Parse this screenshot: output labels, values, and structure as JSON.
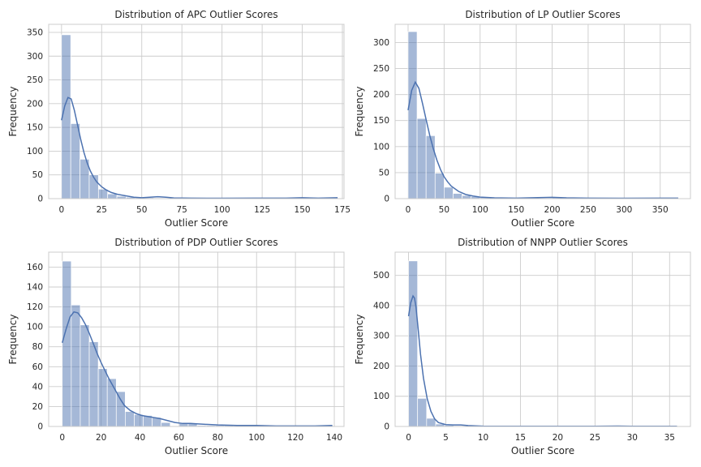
{
  "chart_data": [
    {
      "type": "histogram",
      "title": "Distribution of APC Outlier Scores",
      "xlabel": "Outlier Score",
      "ylabel": "Frequency",
      "xlim": [
        -8,
        176
      ],
      "ylim": [
        0,
        367
      ],
      "xticks": [
        0,
        25,
        50,
        75,
        100,
        125,
        150,
        175
      ],
      "yticks": [
        0,
        50,
        100,
        150,
        200,
        250,
        300,
        350
      ],
      "grid": true,
      "bin_start": 0,
      "bin_width": 5.75,
      "values": [
        345,
        158,
        83,
        50,
        20,
        10,
        5,
        3,
        2,
        2,
        1,
        1,
        1,
        0,
        0,
        0,
        0,
        0,
        0,
        0,
        0,
        0,
        0,
        0,
        0,
        1,
        0,
        0,
        0,
        1
      ],
      "kde": [
        [
          0,
          165
        ],
        [
          2,
          195
        ],
        [
          4,
          213
        ],
        [
          6,
          210
        ],
        [
          8,
          186
        ],
        [
          10,
          155
        ],
        [
          12,
          124
        ],
        [
          14,
          97
        ],
        [
          16,
          75
        ],
        [
          18,
          58
        ],
        [
          20,
          45
        ],
        [
          22,
          35
        ],
        [
          25,
          25
        ],
        [
          28,
          18
        ],
        [
          31,
          13
        ],
        [
          35,
          9
        ],
        [
          40,
          6
        ],
        [
          45,
          3
        ],
        [
          50,
          2
        ],
        [
          55,
          3
        ],
        [
          60,
          4
        ],
        [
          65,
          3
        ],
        [
          70,
          1.5
        ],
        [
          80,
          1
        ],
        [
          100,
          0.8
        ],
        [
          120,
          1
        ],
        [
          140,
          1
        ],
        [
          150,
          2
        ],
        [
          160,
          1
        ],
        [
          172,
          2
        ]
      ]
    },
    {
      "type": "histogram",
      "title": "Distribution of LP Outlier Scores",
      "xlabel": "Outlier Score",
      "ylabel": "Frequency",
      "xlim": [
        -18,
        392
      ],
      "ylim": [
        0,
        335
      ],
      "xticks": [
        0,
        50,
        100,
        150,
        200,
        250,
        300,
        350
      ],
      "yticks": [
        0,
        50,
        100,
        150,
        200,
        250,
        300
      ],
      "grid": true,
      "bin_start": 0,
      "bin_width": 12.5,
      "values": [
        321,
        154,
        121,
        49,
        22,
        10,
        6,
        4,
        2,
        2,
        1,
        1,
        0,
        0,
        1,
        1,
        2,
        1,
        1,
        0,
        1,
        0,
        0,
        0,
        1,
        0,
        0,
        0,
        0,
        1
      ],
      "kde": [
        [
          0,
          170
        ],
        [
          5,
          208
        ],
        [
          10,
          224
        ],
        [
          15,
          212
        ],
        [
          20,
          183
        ],
        [
          25,
          152
        ],
        [
          30,
          122
        ],
        [
          35,
          96
        ],
        [
          40,
          74
        ],
        [
          45,
          56
        ],
        [
          50,
          42
        ],
        [
          55,
          32
        ],
        [
          60,
          24
        ],
        [
          70,
          14
        ],
        [
          80,
          8
        ],
        [
          90,
          5
        ],
        [
          100,
          3
        ],
        [
          120,
          1.5
        ],
        [
          150,
          1
        ],
        [
          180,
          2
        ],
        [
          200,
          2.5
        ],
        [
          220,
          1.5
        ],
        [
          250,
          1
        ],
        [
          300,
          0.8
        ],
        [
          350,
          1
        ],
        [
          375,
          1
        ]
      ]
    },
    {
      "type": "histogram",
      "title": "Distribution of PDP Outlier Scores",
      "xlabel": "Outlier Score",
      "ylabel": "Frequency",
      "xlim": [
        -7,
        145
      ],
      "ylim": [
        0,
        175
      ],
      "xticks": [
        0,
        20,
        40,
        60,
        80,
        100,
        120,
        140
      ],
      "yticks": [
        0,
        20,
        40,
        60,
        80,
        100,
        120,
        140,
        160
      ],
      "grid": true,
      "bin_start": 0,
      "bin_width": 4.63,
      "values": [
        166,
        122,
        102,
        85,
        58,
        48,
        35,
        15,
        12,
        11,
        9,
        4,
        0,
        3,
        3,
        1,
        1,
        1,
        1,
        0,
        0,
        1,
        0,
        0,
        0,
        0,
        0,
        0,
        0,
        1
      ],
      "kde": [
        [
          0,
          84
        ],
        [
          2,
          98
        ],
        [
          4,
          110
        ],
        [
          6,
          115
        ],
        [
          8,
          114
        ],
        [
          10,
          109
        ],
        [
          12,
          102
        ],
        [
          14,
          93
        ],
        [
          16,
          83
        ],
        [
          18,
          73
        ],
        [
          20,
          64
        ],
        [
          22,
          56
        ],
        [
          24,
          48
        ],
        [
          26,
          41
        ],
        [
          28,
          34
        ],
        [
          30,
          27
        ],
        [
          32,
          21
        ],
        [
          35,
          16
        ],
        [
          38,
          13
        ],
        [
          41,
          11
        ],
        [
          44,
          10
        ],
        [
          47,
          9
        ],
        [
          50,
          8
        ],
        [
          54,
          6
        ],
        [
          58,
          4
        ],
        [
          62,
          3
        ],
        [
          66,
          3
        ],
        [
          70,
          2.5
        ],
        [
          75,
          2
        ],
        [
          80,
          1.5
        ],
        [
          90,
          1
        ],
        [
          100,
          1
        ],
        [
          110,
          0.5
        ],
        [
          120,
          0.5
        ],
        [
          130,
          0.5
        ],
        [
          139,
          1
        ]
      ]
    },
    {
      "type": "histogram",
      "title": "Distribution of NNPP Outlier Scores",
      "xlabel": "Outlier Score",
      "ylabel": "Frequency",
      "xlim": [
        -1.8,
        37.8
      ],
      "ylim": [
        0,
        577
      ],
      "xticks": [
        0,
        5,
        10,
        15,
        20,
        25,
        30,
        35
      ],
      "yticks": [
        0,
        100,
        200,
        300,
        400,
        500
      ],
      "grid": true,
      "bin_start": 0,
      "bin_width": 1.212,
      "values": [
        548,
        93,
        27,
        8,
        4,
        2,
        1,
        1,
        0,
        0,
        0,
        0,
        0,
        0,
        0,
        0,
        0,
        0,
        0,
        0,
        0,
        0,
        0,
        0,
        0,
        0,
        0,
        0,
        0,
        1
      ],
      "kde": [
        [
          0,
          365
        ],
        [
          0.3,
          410
        ],
        [
          0.6,
          432
        ],
        [
          0.8,
          425
        ],
        [
          1,
          395
        ],
        [
          1.3,
          320
        ],
        [
          1.6,
          240
        ],
        [
          2,
          160
        ],
        [
          2.5,
          92
        ],
        [
          3,
          50
        ],
        [
          3.5,
          25
        ],
        [
          4,
          13
        ],
        [
          5,
          6
        ],
        [
          6,
          5
        ],
        [
          7,
          5
        ],
        [
          8,
          3
        ],
        [
          10,
          1
        ],
        [
          15,
          0.5
        ],
        [
          20,
          0.5
        ],
        [
          25,
          0.5
        ],
        [
          28,
          1.5
        ],
        [
          30,
          0.5
        ],
        [
          36,
          0.5
        ]
      ]
    }
  ]
}
